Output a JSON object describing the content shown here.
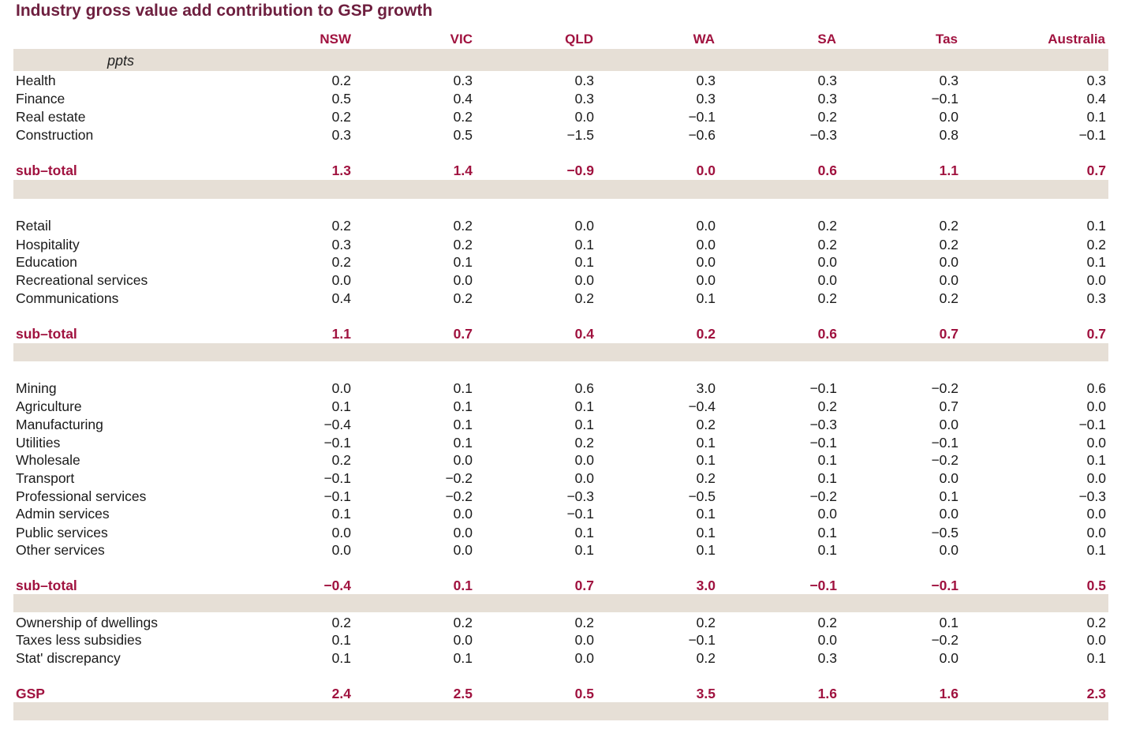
{
  "title": "Industry gross value add contribution to GSP growth",
  "units": "ppts",
  "columns": [
    "NSW",
    "VIC",
    "QLD",
    "WA",
    "SA",
    "Tas",
    "Australia"
  ],
  "rows": [
    {
      "label": "Health",
      "values": [
        "0.2",
        "0.3",
        "0.3",
        "0.3",
        "0.3",
        "0.3",
        "0.3"
      ]
    },
    {
      "label": "Finance",
      "values": [
        "0.5",
        "0.4",
        "0.3",
        "0.3",
        "0.3",
        "−0.1",
        "0.4"
      ]
    },
    {
      "label": "Real estate",
      "values": [
        "0.2",
        "0.2",
        "0.0",
        "−0.1",
        "0.2",
        "0.0",
        "0.1"
      ]
    },
    {
      "label": "Construction",
      "values": [
        "0.3",
        "0.5",
        "−1.5",
        "−0.6",
        "−0.3",
        "0.8",
        "−0.1"
      ]
    },
    {
      "label": "sub–total",
      "values": [
        "1.3",
        "1.4",
        "−0.9",
        "0.0",
        "0.6",
        "1.1",
        "0.7"
      ]
    },
    {
      "label": "Retail",
      "values": [
        "0.2",
        "0.2",
        "0.0",
        "0.0",
        "0.2",
        "0.2",
        "0.1"
      ]
    },
    {
      "label": "Hospitality",
      "values": [
        "0.3",
        "0.2",
        "0.1",
        "0.0",
        "0.2",
        "0.2",
        "0.2"
      ]
    },
    {
      "label": "Education",
      "values": [
        "0.2",
        "0.1",
        "0.1",
        "0.0",
        "0.0",
        "0.0",
        "0.1"
      ]
    },
    {
      "label": "Recreational services",
      "values": [
        "0.0",
        "0.0",
        "0.0",
        "0.0",
        "0.0",
        "0.0",
        "0.0"
      ]
    },
    {
      "label": "Communications",
      "values": [
        "0.4",
        "0.2",
        "0.2",
        "0.1",
        "0.2",
        "0.2",
        "0.3"
      ]
    },
    {
      "label": "sub–total",
      "values": [
        "1.1",
        "0.7",
        "0.4",
        "0.2",
        "0.6",
        "0.7",
        "0.7"
      ]
    },
    {
      "label": "Mining",
      "values": [
        "0.0",
        "0.1",
        "0.6",
        "3.0",
        "−0.1",
        "−0.2",
        "0.6"
      ]
    },
    {
      "label": "Agriculture",
      "values": [
        "0.1",
        "0.1",
        "0.1",
        "−0.4",
        "0.2",
        "0.7",
        "0.0"
      ]
    },
    {
      "label": "Manufacturing",
      "values": [
        "−0.4",
        "0.1",
        "0.1",
        "0.2",
        "−0.3",
        "0.0",
        "−0.1"
      ]
    },
    {
      "label": "Utilities",
      "values": [
        "−0.1",
        "0.1",
        "0.2",
        "0.1",
        "−0.1",
        "−0.1",
        "0.0"
      ]
    },
    {
      "label": "Wholesale",
      "values": [
        "0.2",
        "0.0",
        "0.0",
        "0.1",
        "0.1",
        "−0.2",
        "0.1"
      ]
    },
    {
      "label": "Transport",
      "values": [
        "−0.1",
        "−0.2",
        "0.0",
        "0.2",
        "0.1",
        "0.0",
        "0.0"
      ]
    },
    {
      "label": "Professional services",
      "values": [
        "−0.1",
        "−0.2",
        "−0.3",
        "−0.5",
        "−0.2",
        "0.1",
        "−0.3"
      ]
    },
    {
      "label": "Admin services",
      "values": [
        "0.1",
        "0.0",
        "−0.1",
        "0.1",
        "0.0",
        "0.0",
        "0.0"
      ]
    },
    {
      "label": "Public services",
      "values": [
        "0.0",
        "0.0",
        "0.1",
        "0.1",
        "0.1",
        "−0.5",
        "0.0"
      ]
    },
    {
      "label": "Other services",
      "values": [
        "0.0",
        "0.0",
        "0.1",
        "0.1",
        "0.1",
        "0.0",
        "0.1"
      ]
    },
    {
      "label": "sub–total",
      "values": [
        "−0.4",
        "0.1",
        "0.7",
        "3.0",
        "−0.1",
        "−0.1",
        "0.5"
      ]
    },
    {
      "label": "Ownership of dwellings",
      "values": [
        "0.2",
        "0.2",
        "0.2",
        "0.2",
        "0.2",
        "0.1",
        "0.2"
      ]
    },
    {
      "label": "Taxes less subsidies",
      "values": [
        "0.1",
        "0.0",
        "0.0",
        "−0.1",
        "0.0",
        "−0.2",
        "0.0"
      ]
    },
    {
      "label": "Stat' discrepancy",
      "values": [
        "0.1",
        "0.1",
        "0.0",
        "0.2",
        "0.3",
        "0.0",
        "0.1"
      ]
    },
    {
      "label": "GSP",
      "values": [
        "2.4",
        "2.5",
        "0.5",
        "3.5",
        "1.6",
        "1.6",
        "2.3"
      ]
    }
  ],
  "colors": {
    "title": "#6e1f3f",
    "accent": "#a0123f",
    "band": "#e6dfd6"
  }
}
